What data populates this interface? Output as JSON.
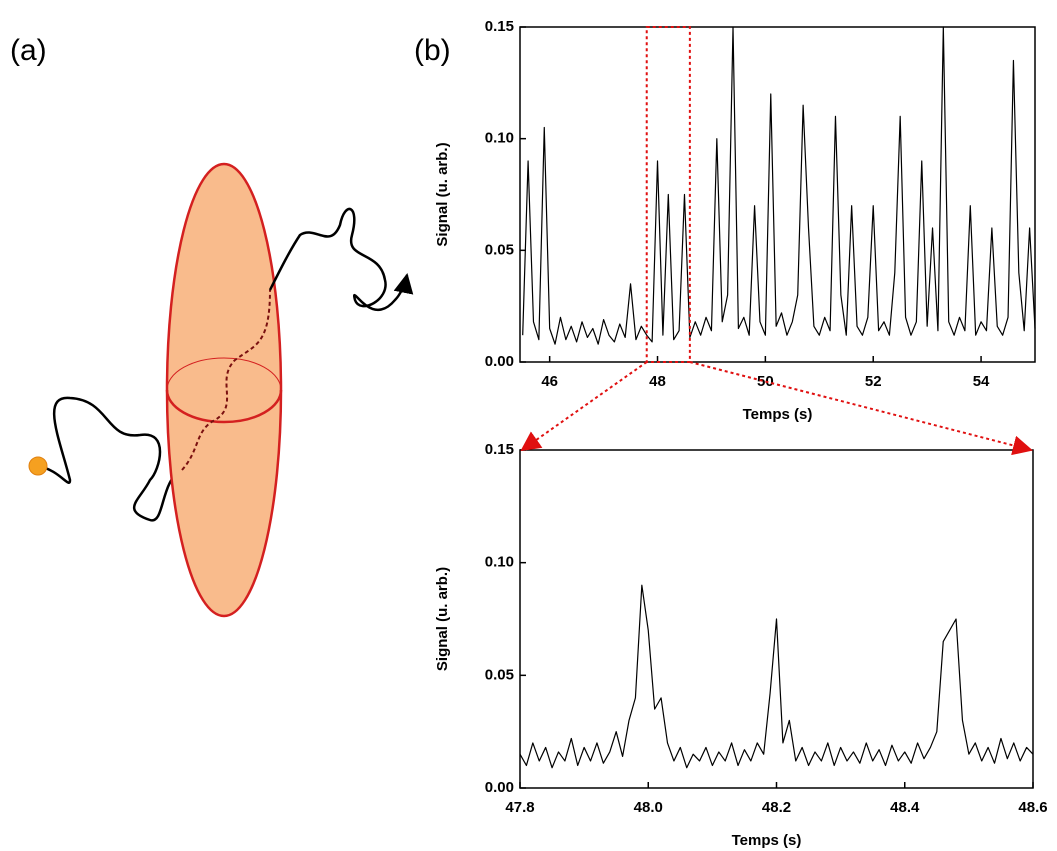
{
  "labels": [
    "(a)",
    "(b)"
  ],
  "chart_data": [
    {
      "type": "line",
      "xlabel": "Temps (s)",
      "ylabel": "Signal (u. arb.)",
      "color": "#000000",
      "xlim": [
        45.45,
        55
      ],
      "ylim": [
        0,
        0.15
      ],
      "xticks": [
        46,
        48,
        50,
        52,
        54
      ],
      "yticks": [
        {
          "value": 0,
          "label": "0.00"
        },
        {
          "value": 0.05,
          "label": "0.05"
        },
        {
          "value": 0.1,
          "label": "0.10"
        },
        {
          "value": 0.15,
          "label": "0.15"
        }
      ],
      "x": [
        45.5,
        45.6,
        45.7,
        45.8,
        45.9,
        46.0,
        46.1,
        46.2,
        46.3,
        46.4,
        46.5,
        46.6,
        46.7,
        46.8,
        46.9,
        47.0,
        47.1,
        47.2,
        47.3,
        47.4,
        47.5,
        47.6,
        47.7,
        47.8,
        47.9,
        48.0,
        48.1,
        48.2,
        48.3,
        48.4,
        48.5,
        48.6,
        48.7,
        48.8,
        48.9,
        49.0,
        49.1,
        49.2,
        49.3,
        49.4,
        49.5,
        49.6,
        49.7,
        49.8,
        49.9,
        50.0,
        50.1,
        50.2,
        50.3,
        50.4,
        50.5,
        50.6,
        50.7,
        50.8,
        50.9,
        51.0,
        51.1,
        51.2,
        51.3,
        51.4,
        51.5,
        51.6,
        51.7,
        51.8,
        51.9,
        52.0,
        52.1,
        52.2,
        52.3,
        52.4,
        52.5,
        52.6,
        52.7,
        52.8,
        52.9,
        53.0,
        53.1,
        53.2,
        53.3,
        53.4,
        53.5,
        53.6,
        53.7,
        53.8,
        53.9,
        54.0,
        54.1,
        54.2,
        54.3,
        54.4,
        54.5,
        54.6,
        54.7,
        54.8,
        54.9,
        55.0
      ],
      "values": [
        0.012,
        0.09,
        0.018,
        0.01,
        0.105,
        0.015,
        0.008,
        0.02,
        0.01,
        0.016,
        0.009,
        0.018,
        0.011,
        0.015,
        0.008,
        0.019,
        0.012,
        0.009,
        0.017,
        0.011,
        0.035,
        0.01,
        0.016,
        0.012,
        0.009,
        0.09,
        0.012,
        0.075,
        0.01,
        0.014,
        0.075,
        0.011,
        0.018,
        0.012,
        0.02,
        0.014,
        0.1,
        0.018,
        0.03,
        0.15,
        0.015,
        0.02,
        0.012,
        0.07,
        0.018,
        0.012,
        0.12,
        0.016,
        0.022,
        0.012,
        0.018,
        0.03,
        0.115,
        0.06,
        0.016,
        0.012,
        0.02,
        0.014,
        0.11,
        0.03,
        0.012,
        0.07,
        0.016,
        0.012,
        0.02,
        0.07,
        0.014,
        0.018,
        0.012,
        0.04,
        0.11,
        0.02,
        0.012,
        0.018,
        0.09,
        0.016,
        0.06,
        0.014,
        0.15,
        0.018,
        0.012,
        0.02,
        0.014,
        0.07,
        0.012,
        0.018,
        0.014,
        0.06,
        0.016,
        0.012,
        0.02,
        0.135,
        0.04,
        0.014,
        0.06,
        0.015
      ]
    },
    {
      "type": "line",
      "xlabel": "Temps (s)",
      "ylabel": "Signal (u. arb.)",
      "color": "#000000",
      "xlim": [
        47.8,
        48.6
      ],
      "ylim": [
        0,
        0.15
      ],
      "xticks": [
        47.8,
        {
          "value": 48,
          "label": "48.0"
        },
        48.2,
        48.4,
        48.6
      ],
      "yticks": [
        {
          "value": 0,
          "label": "0.00"
        },
        {
          "value": 0.05,
          "label": "0.05"
        },
        {
          "value": 0.1,
          "label": "0.10"
        },
        {
          "value": 0.15,
          "label": "0.15"
        }
      ],
      "x": [
        47.8,
        47.81,
        47.82,
        47.83,
        47.84,
        47.85,
        47.86,
        47.87,
        47.88,
        47.89,
        47.9,
        47.91,
        47.92,
        47.93,
        47.94,
        47.95,
        47.96,
        47.97,
        47.98,
        47.99,
        48.0,
        48.01,
        48.02,
        48.03,
        48.04,
        48.05,
        48.06,
        48.07,
        48.08,
        48.09,
        48.1,
        48.11,
        48.12,
        48.13,
        48.14,
        48.15,
        48.16,
        48.17,
        48.18,
        48.19,
        48.2,
        48.21,
        48.22,
        48.23,
        48.24,
        48.25,
        48.26,
        48.27,
        48.28,
        48.29,
        48.3,
        48.31,
        48.32,
        48.33,
        48.34,
        48.35,
        48.36,
        48.37,
        48.38,
        48.39,
        48.4,
        48.41,
        48.42,
        48.43,
        48.44,
        48.45,
        48.46,
        48.47,
        48.48,
        48.49,
        48.5,
        48.51,
        48.52,
        48.53,
        48.54,
        48.55,
        48.56,
        48.57,
        48.58,
        48.59,
        48.6
      ],
      "values": [
        0.015,
        0.01,
        0.02,
        0.012,
        0.018,
        0.009,
        0.016,
        0.012,
        0.022,
        0.01,
        0.018,
        0.012,
        0.02,
        0.011,
        0.016,
        0.025,
        0.014,
        0.03,
        0.04,
        0.09,
        0.07,
        0.035,
        0.04,
        0.02,
        0.012,
        0.018,
        0.009,
        0.015,
        0.012,
        0.018,
        0.01,
        0.016,
        0.012,
        0.02,
        0.01,
        0.017,
        0.012,
        0.02,
        0.015,
        0.042,
        0.075,
        0.02,
        0.03,
        0.012,
        0.018,
        0.01,
        0.016,
        0.012,
        0.02,
        0.01,
        0.018,
        0.012,
        0.016,
        0.011,
        0.02,
        0.012,
        0.017,
        0.01,
        0.019,
        0.012,
        0.016,
        0.011,
        0.02,
        0.013,
        0.018,
        0.025,
        0.065,
        0.07,
        0.075,
        0.03,
        0.015,
        0.02,
        0.012,
        0.018,
        0.011,
        0.022,
        0.013,
        0.02,
        0.012,
        0.018,
        0.015
      ]
    }
  ]
}
